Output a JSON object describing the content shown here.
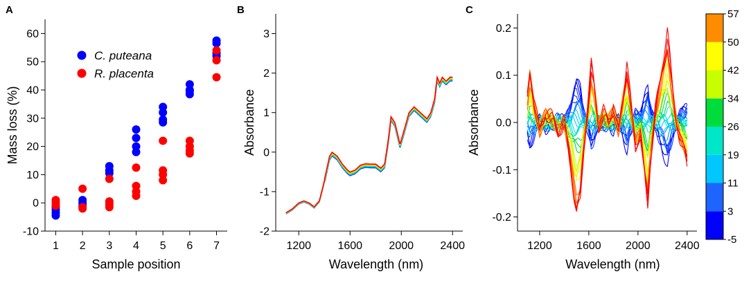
{
  "panels": {
    "a": {
      "label": "A"
    },
    "b": {
      "label": "B"
    },
    "c": {
      "label": "C"
    }
  },
  "colors": {
    "c_puteana": "#0000ff",
    "r_placenta": "#ff0000",
    "colormap": [
      "#0000ff",
      "#1e64ff",
      "#00c8ff",
      "#00e6c8",
      "#00dc3c",
      "#c8ff00",
      "#ffff00",
      "#ff8c00",
      "#ff0000"
    ]
  },
  "chart_data": [
    {
      "id": "A",
      "type": "scatter",
      "xlabel": "Sample position",
      "ylabel": "Mass loss (%)",
      "xticks": [
        1,
        2,
        3,
        4,
        5,
        6,
        7
      ],
      "yticks": [
        -10,
        0,
        10,
        20,
        30,
        40,
        50,
        60
      ],
      "xlim": [
        0.6,
        7.4
      ],
      "ylim": [
        -10,
        65
      ],
      "grid": false,
      "legend_position": "top-left",
      "series": [
        {
          "name": "C. puteana",
          "color": "#0000ff",
          "points": [
            [
              1,
              -1.5
            ],
            [
              1,
              -2.5
            ],
            [
              1,
              -3.5
            ],
            [
              1,
              -4.5
            ],
            [
              2,
              1
            ],
            [
              2,
              0
            ],
            [
              2,
              -1
            ],
            [
              3,
              13
            ],
            [
              3,
              11.5
            ],
            [
              3,
              10.5
            ],
            [
              4,
              26
            ],
            [
              4,
              23
            ],
            [
              4,
              20
            ],
            [
              4,
              18
            ],
            [
              5,
              34
            ],
            [
              5,
              32
            ],
            [
              5,
              29.5
            ],
            [
              5,
              28.5
            ],
            [
              6,
              42
            ],
            [
              6,
              40
            ],
            [
              6,
              39.5
            ],
            [
              6,
              38.5
            ],
            [
              7,
              57.5
            ],
            [
              7,
              56.5
            ],
            [
              7,
              53
            ],
            [
              7,
              52
            ]
          ]
        },
        {
          "name": "R. placenta",
          "color": "#ff0000",
          "points": [
            [
              1,
              1
            ],
            [
              1,
              0
            ],
            [
              1,
              -1
            ],
            [
              2,
              5
            ],
            [
              2,
              -1.5
            ],
            [
              2,
              -2
            ],
            [
              3,
              8.5
            ],
            [
              3,
              0.5
            ],
            [
              3,
              -0.5
            ],
            [
              3,
              -1.5
            ],
            [
              4,
              12.5
            ],
            [
              4,
              6
            ],
            [
              4,
              4
            ],
            [
              4,
              2.5
            ],
            [
              5,
              22
            ],
            [
              5,
              11.5
            ],
            [
              5,
              10
            ],
            [
              5,
              8
            ],
            [
              6,
              22
            ],
            [
              6,
              20
            ],
            [
              6,
              18.5
            ],
            [
              6,
              17.5
            ],
            [
              7,
              54
            ],
            [
              7,
              50.5
            ],
            [
              7,
              44.5
            ]
          ]
        }
      ]
    },
    {
      "id": "B",
      "type": "line",
      "xlabel": "Wavelength (nm)",
      "ylabel": "Absorbance",
      "xticks": [
        1200,
        1600,
        2000,
        2400
      ],
      "yticks": [
        -2,
        -1,
        0,
        1,
        2,
        3
      ],
      "xlim": [
        1020,
        2480
      ],
      "ylim": [
        -2,
        3.5
      ],
      "grid": false,
      "profile_x": [
        1100,
        1150,
        1200,
        1240,
        1280,
        1320,
        1360,
        1380,
        1410,
        1440,
        1460,
        1500,
        1540,
        1580,
        1600,
        1640,
        1680,
        1720,
        1760,
        1800,
        1840,
        1870,
        1900,
        1920,
        1950,
        1990,
        2030,
        2060,
        2100,
        2150,
        2200,
        2230,
        2260,
        2280,
        2300,
        2320,
        2350,
        2380,
        2400
      ],
      "profile_y": [
        -1.55,
        -1.45,
        -1.3,
        -1.25,
        -1.3,
        -1.4,
        -1.25,
        -1.0,
        -0.6,
        -0.15,
        -0.05,
        -0.15,
        -0.35,
        -0.5,
        -0.55,
        -0.5,
        -0.38,
        -0.34,
        -0.35,
        -0.35,
        -0.45,
        -0.35,
        0.3,
        0.85,
        0.7,
        0.15,
        0.6,
        0.95,
        1.1,
        0.95,
        0.8,
        0.95,
        1.3,
        1.85,
        1.7,
        1.85,
        1.75,
        1.85,
        1.85
      ],
      "series_count": 9
    },
    {
      "id": "C",
      "type": "line",
      "xlabel": "Wavelength (nm)",
      "ylabel": "Absorbance",
      "xticks": [
        1200,
        1600,
        2000,
        2400
      ],
      "yticks": [
        -0.2,
        -0.1,
        0.0,
        0.1,
        0.2
      ],
      "ytick_labels": [
        "-0.2",
        "-0.1",
        "0.0",
        "0.1",
        "0.2"
      ],
      "xlim": [
        1020,
        2480
      ],
      "ylim": [
        -0.23,
        0.23
      ],
      "grid": false,
      "profile_x": [
        1100,
        1120,
        1150,
        1200,
        1250,
        1300,
        1350,
        1400,
        1450,
        1480,
        1500,
        1530,
        1560,
        1600,
        1620,
        1640,
        1680,
        1720,
        1760,
        1800,
        1840,
        1880,
        1910,
        1940,
        1980,
        2020,
        2060,
        2080,
        2100,
        2140,
        2180,
        2220,
        2240,
        2260,
        2300,
        2340,
        2380,
        2400
      ],
      "profile_y": [
        0.05,
        0.1,
        0.05,
        -0.02,
        0.02,
        0.01,
        -0.02,
        0.0,
        -0.08,
        -0.15,
        -0.18,
        -0.15,
        -0.05,
        0.05,
        0.11,
        0.08,
        -0.01,
        0.02,
        0.0,
        0.03,
        -0.02,
        0.05,
        0.11,
        0.04,
        -0.05,
        -0.02,
        -0.12,
        -0.16,
        -0.08,
        0.02,
        0.08,
        0.14,
        0.17,
        0.12,
        0.02,
        -0.03,
        -0.06,
        -0.08
      ],
      "sample_amplitudes": [
        -0.45,
        -0.35,
        -0.2,
        -0.05,
        0.1,
        0.3,
        0.5,
        0.7,
        0.9,
        1.05
      ],
      "colorbar": {
        "ticks": [
          "-5",
          "3",
          "11",
          "19",
          "26",
          "34",
          "42",
          "50",
          "57"
        ],
        "min": -5,
        "max": 57
      }
    }
  ]
}
